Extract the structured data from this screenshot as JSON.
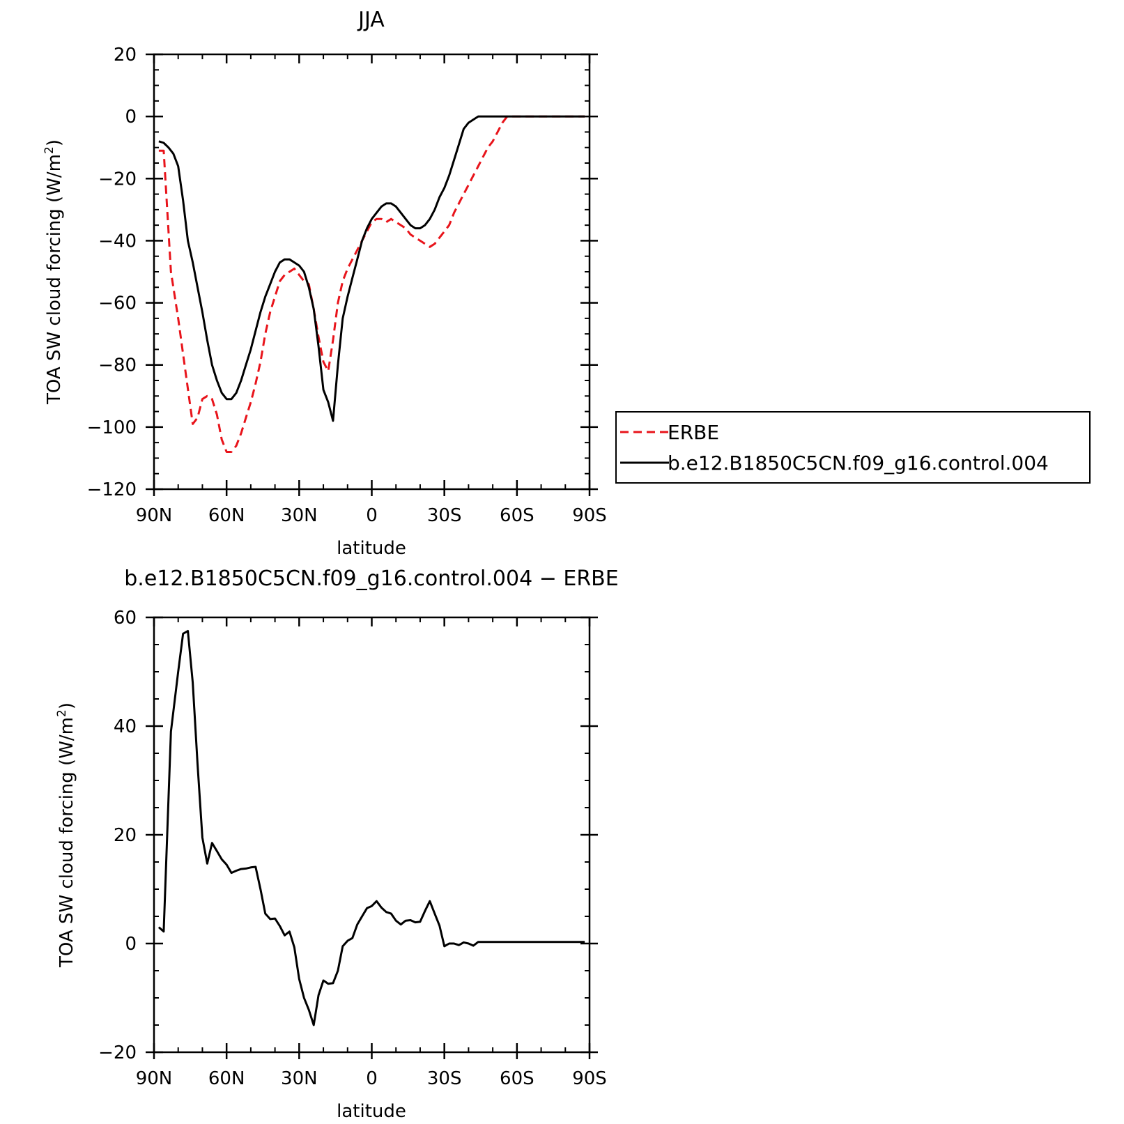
{
  "chart_data": [
    {
      "type": "line",
      "title": "JJA",
      "xlabel": "latitude",
      "ylabel": "TOA SW cloud forcing (W/m²)",
      "ylabel_main": "TOA SW cloud forcing (W/m",
      "ylabel_sup": "2",
      "ylabel_tail": ")",
      "xlim": [
        90,
        -90
      ],
      "ylim": [
        -120,
        20
      ],
      "xticks": [
        90,
        60,
        30,
        0,
        -30,
        -60,
        -90
      ],
      "xtick_labels": [
        "90N",
        "60N",
        "30N",
        "0",
        "30S",
        "60S",
        "90S"
      ],
      "yticks": [
        20,
        0,
        -20,
        -40,
        -60,
        -80,
        -100,
        -120
      ],
      "ytick_labels": [
        "20",
        "0",
        "−20",
        "−40",
        "−60",
        "−80",
        "−100",
        "−120"
      ],
      "legend": {
        "placement": "outside-right",
        "entries": [
          {
            "label": "ERBE",
            "color": "#e8141b",
            "dash": "dashed"
          },
          {
            "label": "b.e12.B1850C5CN.f09_g16.control.004",
            "color": "#000000",
            "dash": "solid"
          }
        ]
      },
      "series": [
        {
          "name": "ERBE",
          "color": "#e8141b",
          "dash": "dashed",
          "x": [
            88,
            86,
            83,
            80,
            77,
            74,
            72,
            70,
            68,
            66,
            64,
            62,
            60,
            58,
            56,
            54,
            52,
            50,
            48,
            46,
            44,
            42,
            40,
            38,
            36,
            34,
            32,
            30,
            28,
            26,
            24,
            22,
            20,
            18,
            16,
            14,
            12,
            10,
            8,
            6,
            4,
            2,
            0,
            -2,
            -4,
            -6,
            -8,
            -10,
            -12,
            -14,
            -16,
            -18,
            -20,
            -22,
            -24,
            -26,
            -28,
            -30,
            -32,
            -34,
            -36,
            -38,
            -40,
            -42,
            -44,
            -46,
            -48,
            -50,
            -52,
            -54,
            -56,
            -58,
            -60,
            -62,
            -64,
            -66,
            -68,
            -70,
            -72,
            -74,
            -76,
            -78,
            -80,
            -82,
            -84,
            -86,
            -88
          ],
          "y": [
            -11,
            -11,
            -50,
            -65,
            -82,
            -99,
            -97,
            -91,
            -90,
            -91,
            -96,
            -104,
            -108,
            -108,
            -106,
            -102,
            -97,
            -92,
            -86,
            -79,
            -70,
            -63,
            -58,
            -53,
            -51,
            -50,
            -49,
            -51,
            -53,
            -54,
            -62,
            -71,
            -79,
            -82,
            -72,
            -60,
            -53,
            -49,
            -46,
            -43,
            -40,
            -37,
            -34,
            -33,
            -33,
            -34,
            -33,
            -34,
            -35,
            -36,
            -38,
            -39,
            -40,
            -41,
            -42,
            -41,
            -39,
            -37,
            -35,
            -31,
            -28,
            -25,
            -22,
            -19,
            -16,
            -13,
            -10,
            -8,
            -5,
            -2,
            0,
            0,
            0,
            0,
            0,
            0,
            0,
            0,
            0,
            0,
            0,
            0,
            0,
            0,
            0,
            0,
            0
          ]
        },
        {
          "name": "b.e12.B1850C5CN.f09_g16.control.004",
          "color": "#000000",
          "dash": "solid",
          "x": [
            88,
            86,
            84,
            82,
            80,
            78,
            76,
            74,
            72,
            70,
            68,
            66,
            64,
            62,
            60,
            58,
            56,
            54,
            52,
            50,
            48,
            46,
            44,
            42,
            40,
            38,
            36,
            34,
            32,
            30,
            28,
            26,
            24,
            22,
            20,
            18,
            16,
            14,
            12,
            10,
            8,
            6,
            4,
            2,
            0,
            -2,
            -4,
            -6,
            -8,
            -10,
            -12,
            -14,
            -16,
            -18,
            -20,
            -22,
            -24,
            -26,
            -28,
            -30,
            -32,
            -34,
            -36,
            -38,
            -40,
            -42,
            -44,
            -46,
            -48,
            -50,
            -52,
            -54,
            -56,
            -58,
            -60,
            -62,
            -64,
            -66,
            -68,
            -70,
            -72,
            -74,
            -76,
            -78,
            -80,
            -82,
            -84,
            -86,
            -88
          ],
          "y": [
            -8,
            -8.5,
            -10,
            -12,
            -16,
            -27,
            -40,
            -47,
            -55,
            -63,
            -72,
            -80,
            -85,
            -89,
            -91,
            -91,
            -89,
            -85,
            -80,
            -75,
            -69,
            -63,
            -58,
            -54,
            -50,
            -47,
            -46,
            -46,
            -47,
            -48,
            -50,
            -55,
            -62,
            -74,
            -88,
            -92,
            -98,
            -80,
            -65,
            -58,
            -52,
            -46,
            -40,
            -36,
            -33,
            -31,
            -29,
            -28,
            -28,
            -29,
            -31,
            -33,
            -35,
            -36,
            -36,
            -35,
            -33,
            -30,
            -26,
            -23,
            -19,
            -14,
            -9,
            -4,
            -2,
            -1,
            0,
            0,
            0,
            0,
            0,
            0,
            0,
            0,
            0,
            0,
            0,
            0,
            0,
            0,
            0,
            0,
            0,
            0,
            0,
            0,
            0,
            0,
            0
          ]
        }
      ]
    },
    {
      "type": "line",
      "title": "b.e12.B1850C5CN.f09_g16.control.004 − ERBE",
      "xlabel": "latitude",
      "ylabel": "TOA SW cloud forcing (W/m²)",
      "ylabel_main": "TOA SW cloud forcing (W/m",
      "ylabel_sup": "2",
      "ylabel_tail": ")",
      "xlim": [
        90,
        -90
      ],
      "ylim": [
        -20,
        60
      ],
      "xticks": [
        90,
        60,
        30,
        0,
        -30,
        -60,
        -90
      ],
      "xtick_labels": [
        "90N",
        "60N",
        "30N",
        "0",
        "30S",
        "60S",
        "90S"
      ],
      "yticks": [
        60,
        40,
        20,
        0,
        -20
      ],
      "ytick_labels": [
        "60",
        "40",
        "20",
        "0",
        "−20"
      ],
      "series": [
        {
          "color": "#000000",
          "dash": "solid",
          "x": [
            88,
            86,
            83,
            80,
            78,
            76,
            74,
            72,
            70,
            68,
            66,
            64,
            62,
            60,
            58,
            56,
            54,
            52,
            50,
            48,
            46,
            44,
            42,
            40,
            38,
            36,
            34,
            32,
            30,
            28,
            26,
            24,
            22,
            20,
            18,
            16,
            14,
            12,
            10,
            8,
            6,
            4,
            2,
            0,
            -2,
            -4,
            -6,
            -8,
            -10,
            -12,
            -14,
            -16,
            -18,
            -20,
            -22,
            -24,
            -26,
            -28,
            -30,
            -32,
            -34,
            -36,
            -38,
            -40,
            -42,
            -44,
            -46,
            -48,
            -50,
            -52,
            -54,
            -56,
            -58,
            -60,
            -62,
            -64,
            -66,
            -68,
            -70,
            -72,
            -74,
            -76,
            -78,
            -80,
            -82,
            -84,
            -86,
            -88
          ],
          "y": [
            3,
            2.2,
            39,
            50,
            57,
            57.5,
            48,
            33,
            19.5,
            14.7,
            18.5,
            17,
            15.5,
            14.5,
            13,
            13.4,
            13.7,
            13.8,
            14,
            14.1,
            10,
            5.5,
            4.5,
            4.6,
            3.2,
            1.5,
            2.2,
            -0.7,
            -6.5,
            -10,
            -12.2,
            -15,
            -9.5,
            -6.8,
            -7.4,
            -7.3,
            -5,
            -0.5,
            0.5,
            1,
            3.5,
            5,
            6.5,
            6.9,
            7.8,
            6.6,
            5.8,
            5.5,
            4.2,
            3.5,
            4.2,
            4.3,
            3.9,
            4,
            6,
            7.8,
            5.5,
            3.3,
            -0.5,
            0,
            0,
            -0.3,
            0.2,
            0,
            -0.4,
            0.3,
            0.3,
            0.3,
            0.3,
            0.3,
            0.3,
            0.3,
            0.3,
            0.3,
            0.3,
            0.3,
            0.3,
            0.3,
            0.3,
            0.3,
            0.3,
            0.3,
            0.3,
            0.3,
            0.3,
            0.3,
            0.3,
            0.3
          ]
        }
      ]
    }
  ]
}
